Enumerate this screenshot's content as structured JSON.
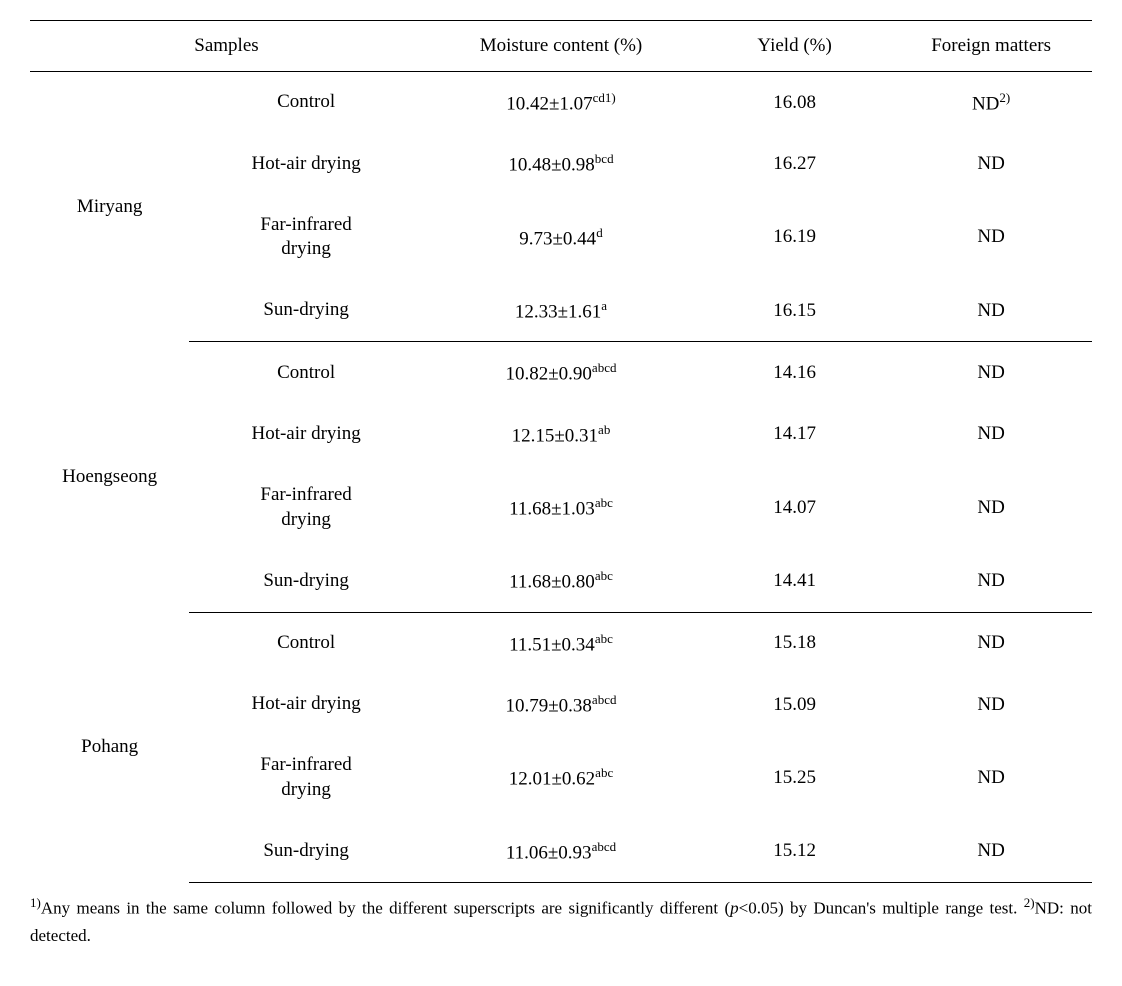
{
  "headers": {
    "samples": "Samples",
    "moisture": "Moisture content (%)",
    "yield": "Yield (%)",
    "foreign": "Foreign matters"
  },
  "groups": [
    {
      "name": "Miryang",
      "rows": [
        {
          "method": "Control",
          "moisture": "10.42±1.07",
          "moisture_sup": "cd1)",
          "yield": "16.08",
          "foreign": "ND",
          "foreign_sup": "2)"
        },
        {
          "method": "Hot-air drying",
          "moisture": "10.48±0.98",
          "moisture_sup": "bcd",
          "yield": "16.27",
          "foreign": "ND",
          "foreign_sup": ""
        },
        {
          "method": "Far-infrared\ndrying",
          "moisture": "9.73±0.44",
          "moisture_sup": "d",
          "yield": "16.19",
          "foreign": "ND",
          "foreign_sup": ""
        },
        {
          "method": "Sun-drying",
          "moisture": "12.33±1.61",
          "moisture_sup": "a",
          "yield": "16.15",
          "foreign": "ND",
          "foreign_sup": ""
        }
      ]
    },
    {
      "name": "Hoengseong",
      "rows": [
        {
          "method": "Control",
          "moisture": "10.82±0.90",
          "moisture_sup": "abcd",
          "yield": "14.16",
          "foreign": "ND",
          "foreign_sup": ""
        },
        {
          "method": "Hot-air drying",
          "moisture": "12.15±0.31",
          "moisture_sup": "ab",
          "yield": "14.17",
          "foreign": "ND",
          "foreign_sup": ""
        },
        {
          "method": "Far-infrared\ndrying",
          "moisture": "11.68±1.03",
          "moisture_sup": "abc",
          "yield": "14.07",
          "foreign": "ND",
          "foreign_sup": ""
        },
        {
          "method": "Sun-drying",
          "moisture": "11.68±0.80",
          "moisture_sup": "abc",
          "yield": "14.41",
          "foreign": "ND",
          "foreign_sup": ""
        }
      ]
    },
    {
      "name": "Pohang",
      "rows": [
        {
          "method": "Control",
          "moisture": "11.51±0.34",
          "moisture_sup": "abc",
          "yield": "15.18",
          "foreign": "ND",
          "foreign_sup": ""
        },
        {
          "method": "Hot-air drying",
          "moisture": "10.79±0.38",
          "moisture_sup": "abcd",
          "yield": "15.09",
          "foreign": "ND",
          "foreign_sup": ""
        },
        {
          "method": "Far-infrared\ndrying",
          "moisture": "12.01±0.62",
          "moisture_sup": "abc",
          "yield": "15.25",
          "foreign": "ND",
          "foreign_sup": ""
        },
        {
          "method": "Sun-drying",
          "moisture": "11.06±0.93",
          "moisture_sup": "abcd",
          "yield": "15.12",
          "foreign": "ND",
          "foreign_sup": ""
        }
      ]
    }
  ],
  "footnotes": {
    "note1_sup": "1)",
    "note1_text_a": "Any means in the same column followed by the different superscripts are significantly different (",
    "note1_p": "p",
    "note1_text_b": "<0.05) by Duncan's multiple range test. ",
    "note2_sup": "2)",
    "note2_text": "ND: not detected."
  },
  "colwidths": {
    "group": "15%",
    "method": "22%",
    "moisture": "26%",
    "yield": "18%",
    "foreign": "19%"
  }
}
